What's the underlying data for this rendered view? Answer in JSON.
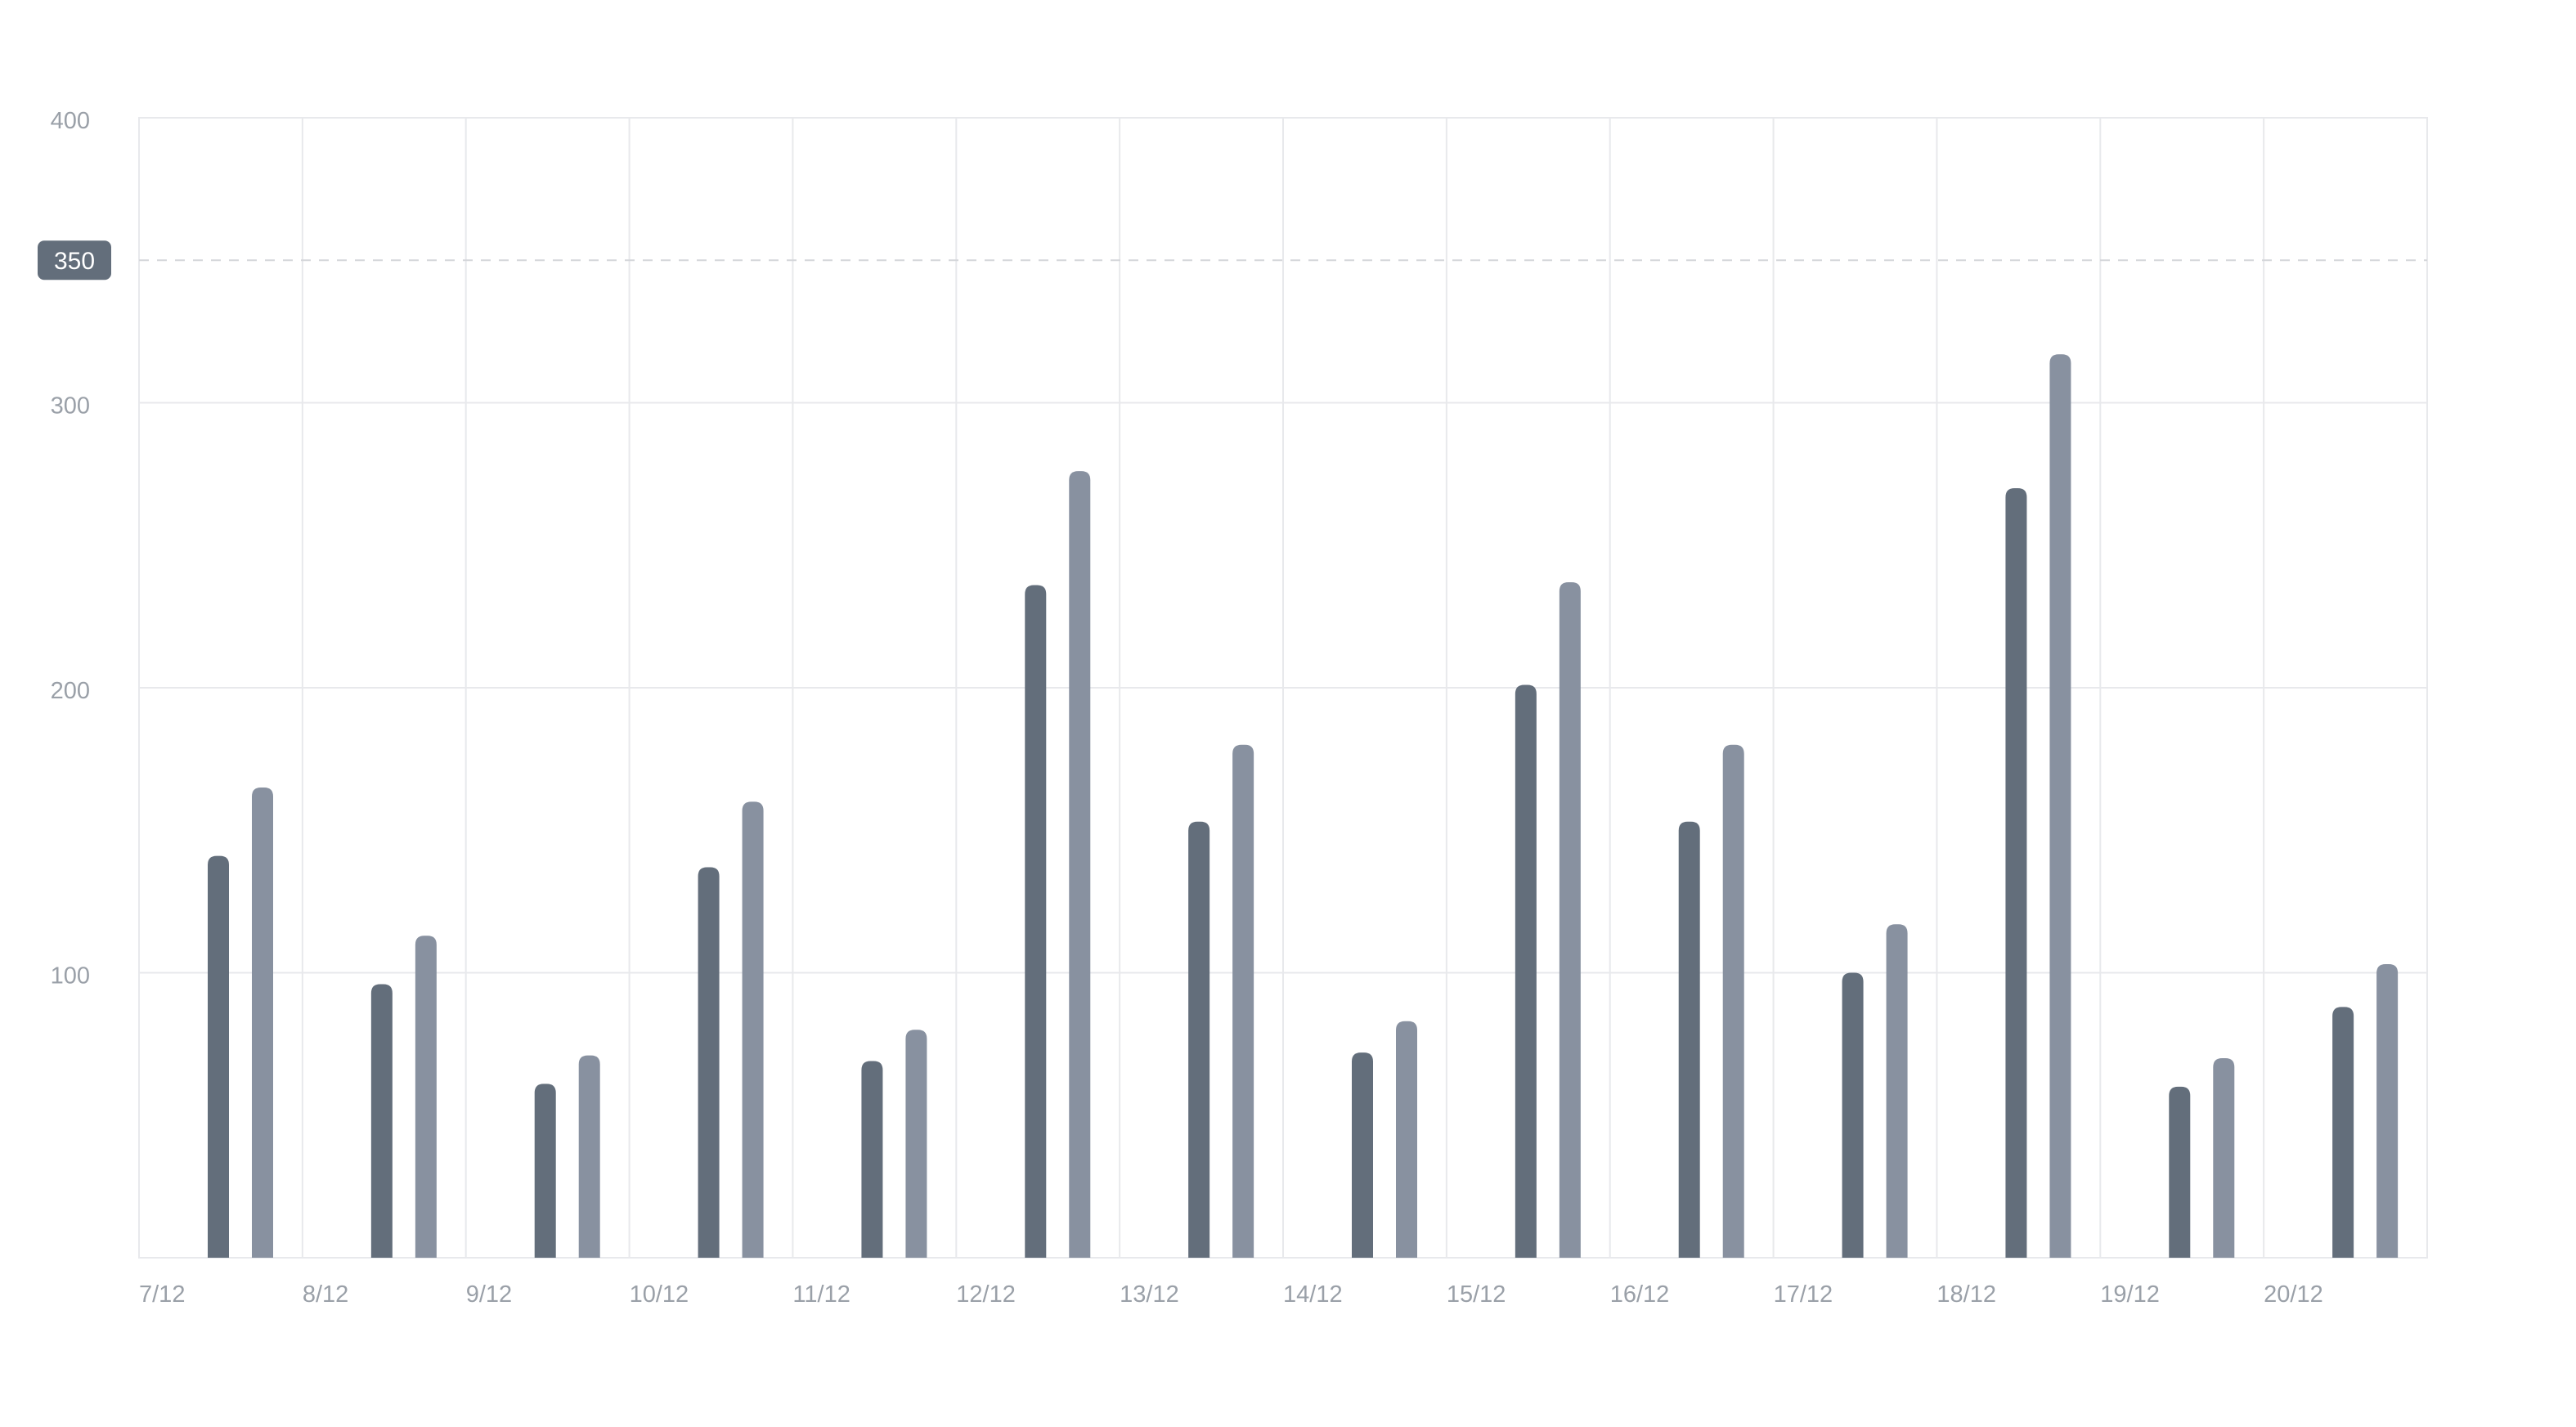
{
  "chart_data": {
    "type": "bar",
    "title": "",
    "xlabel": "",
    "ylabel": "",
    "categories": [
      "7/12",
      "8/12",
      "9/12",
      "10/12",
      "11/12",
      "12/12",
      "13/12",
      "14/12",
      "15/12",
      "16/12",
      "17/12",
      "18/12",
      "19/12",
      "20/12"
    ],
    "series": [
      {
        "color": "#636e7b",
        "values": [
          141,
          96,
          61,
          137,
          69,
          236,
          153,
          72,
          201,
          153,
          100,
          270,
          60,
          88
        ]
      },
      {
        "color": "#8891a0",
        "values": [
          165,
          113,
          71,
          160,
          80,
          276,
          180,
          83,
          237,
          180,
          117,
          317,
          70,
          103
        ]
      }
    ],
    "ylim": [
      0,
      400
    ],
    "yticks": [
      "100",
      "200",
      "300",
      "400"
    ],
    "reference_line": {
      "value": 350,
      "label": "350",
      "color": "#636e7b"
    },
    "grid": true,
    "legend": "none"
  }
}
